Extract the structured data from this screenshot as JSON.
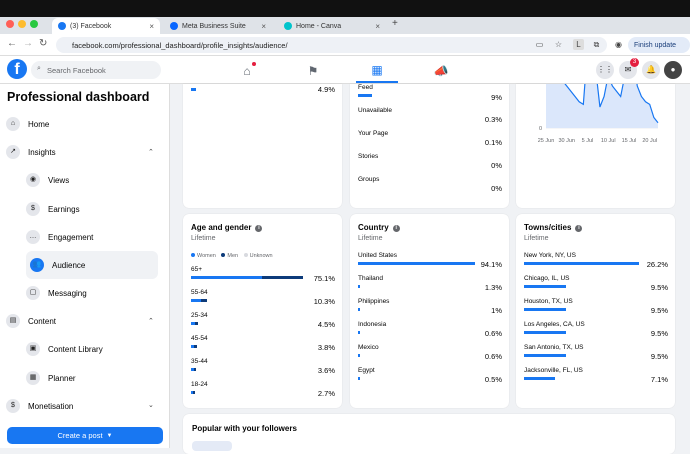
{
  "browser": {
    "tabs": [
      {
        "title": "(3) Facebook",
        "color": "#1877f2"
      },
      {
        "title": "Meta Business Suite",
        "color": "#0866ff"
      },
      {
        "title": "Home - Canva",
        "color": "#00c4cc"
      }
    ],
    "url": "facebook.com/professional_dashboard/profile_insights/audience/",
    "finish_update": "Finish update",
    "new_tab": "+"
  },
  "header": {
    "search_placeholder": "Search Facebook",
    "messenger_badge": "3"
  },
  "sidebar": {
    "title": "Professional dashboard",
    "items": [
      {
        "label": "Home"
      },
      {
        "label": "Insights"
      },
      {
        "label": "Views"
      },
      {
        "label": "Earnings"
      },
      {
        "label": "Engagement"
      },
      {
        "label": "Audience"
      },
      {
        "label": "Messaging"
      },
      {
        "label": "Content"
      },
      {
        "label": "Content Library"
      },
      {
        "label": "Planner"
      },
      {
        "label": "Monetisation"
      }
    ],
    "create_post": "Create a post"
  },
  "top_left_card": {
    "value": "4.9%"
  },
  "top_mid_card": {
    "rows": [
      {
        "label": "Feed",
        "value": "9%"
      },
      {
        "label": "Unavailable",
        "value": "0.3%"
      },
      {
        "label": "Your Page",
        "value": "0.1%"
      },
      {
        "label": "Stories",
        "value": "0%"
      },
      {
        "label": "Groups",
        "value": "0%"
      }
    ]
  },
  "chart_data": {
    "type": "line",
    "title": "",
    "x_ticks": [
      "25 Jun",
      "30 Jun",
      "5 Jul",
      "10 Jul",
      "15 Jul",
      "20 Jul"
    ],
    "y_ticks": [
      "0",
      "100.0"
    ],
    "ylim": [
      0,
      160
    ],
    "x": [
      "25 Jun",
      "26 Jun",
      "27 Jun",
      "28 Jun",
      "29 Jun",
      "30 Jun",
      "1 Jul",
      "2 Jul",
      "3 Jul",
      "4 Jul",
      "5 Jul",
      "6 Jul",
      "7 Jul",
      "8 Jul",
      "9 Jul",
      "10 Jul",
      "11 Jul",
      "12 Jul",
      "13 Jul",
      "14 Jul",
      "15 Jul",
      "16 Jul",
      "17 Jul",
      "18 Jul",
      "19 Jul",
      "20 Jul",
      "21 Jul",
      "22 Jul"
    ],
    "values": [
      140,
      150,
      120,
      100,
      90,
      80,
      70,
      60,
      50,
      45,
      150,
      120,
      110,
      40,
      60,
      100,
      80,
      70,
      60,
      100,
      90,
      140,
      80,
      60,
      50,
      45,
      20,
      10
    ],
    "grid": true
  },
  "age_gender": {
    "title": "Age and gender",
    "subtitle": "Lifetime",
    "legend": [
      {
        "label": "Women",
        "color": "#1877f2"
      },
      {
        "label": "Men",
        "color": "#0d3b7a"
      },
      {
        "label": "Unknown",
        "color": "#d8dadf"
      }
    ],
    "rows": [
      {
        "label": "65+",
        "value": "75.1%",
        "women": 0.56,
        "men": 0.32
      },
      {
        "label": "55-64",
        "value": "10.3%",
        "women": 0.08,
        "men": 0.05
      },
      {
        "label": "25-34",
        "value": "4.5%",
        "women": 0.03,
        "men": 0.02
      },
      {
        "label": "45-54",
        "value": "3.8%",
        "women": 0.025,
        "men": 0.02
      },
      {
        "label": "35-44",
        "value": "3.6%",
        "women": 0.025,
        "men": 0.015
      },
      {
        "label": "18-24",
        "value": "2.7%",
        "women": 0.018,
        "men": 0.012
      }
    ]
  },
  "country": {
    "title": "Country",
    "subtitle": "Lifetime",
    "rows": [
      {
        "label": "United States",
        "value": "94.1%",
        "fraction": 0.941
      },
      {
        "label": "Thailand",
        "value": "1.3%",
        "fraction": 0.013
      },
      {
        "label": "Philippines",
        "value": "1%",
        "fraction": 0.01
      },
      {
        "label": "Indonesia",
        "value": "0.6%",
        "fraction": 0.006
      },
      {
        "label": "Mexico",
        "value": "0.6%",
        "fraction": 0.006
      },
      {
        "label": "Egypt",
        "value": "0.5%",
        "fraction": 0.005
      }
    ]
  },
  "towns": {
    "title": "Towns/cities",
    "subtitle": "Lifetime",
    "rows": [
      {
        "label": "New York, NY, US",
        "value": "26.2%",
        "fraction": 0.262
      },
      {
        "label": "Chicago, IL, US",
        "value": "9.5%",
        "fraction": 0.095
      },
      {
        "label": "Houston, TX, US",
        "value": "9.5%",
        "fraction": 0.095
      },
      {
        "label": "Los Angeles, CA, US",
        "value": "9.5%",
        "fraction": 0.095
      },
      {
        "label": "San Antonio, TX, US",
        "value": "9.5%",
        "fraction": 0.095
      },
      {
        "label": "Jacksonville, FL, US",
        "value": "7.1%",
        "fraction": 0.071
      }
    ]
  },
  "popular": {
    "title": "Popular with your followers"
  }
}
